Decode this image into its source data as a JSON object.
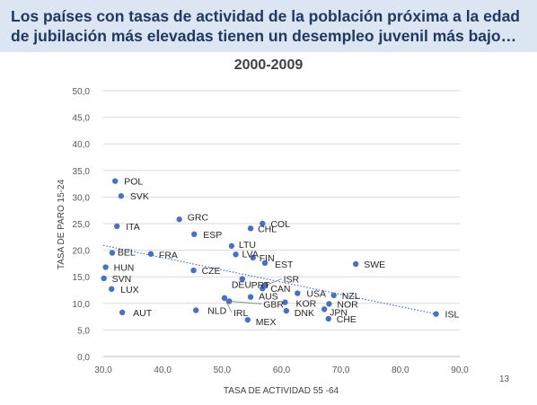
{
  "slide": {
    "headline": "Los países con tasas de actividad de la población próxima a la edad de jubilación más elevadas tienen un desempleo juvenil más bajo…",
    "page_number": "13",
    "colors": {
      "banner_background": "#dce6f2",
      "headline_text": "#1f3864",
      "marker": "#4472c4"
    }
  },
  "chart_data": {
    "type": "scatter",
    "title": "2000-2009",
    "xlabel": "TASA DE ACTIVIDAD 55 -64",
    "ylabel": "TASA DE PARO 15-24",
    "xlim": [
      30,
      90
    ],
    "ylim": [
      0,
      50
    ],
    "x_ticks": [
      "30,0",
      "40,0",
      "50,0",
      "60,0",
      "70,0",
      "80,0",
      "90,0"
    ],
    "y_ticks": [
      "0,0",
      "5,0",
      "10,0",
      "15,0",
      "20,0",
      "25,0",
      "30,0",
      "35,0",
      "40,0",
      "45,0",
      "50,0"
    ],
    "grid": "horizontal",
    "trendline": {
      "style": "dotted",
      "x": [
        30,
        86
      ],
      "y": [
        20.9,
        8.0
      ]
    },
    "points": [
      {
        "label": "POL",
        "x": 32.0,
        "y": 33.0
      },
      {
        "label": "SVK",
        "x": 33.0,
        "y": 30.2
      },
      {
        "label": "ITA",
        "x": 32.3,
        "y": 24.5
      },
      {
        "label": "BEL",
        "x": 31.5,
        "y": 19.5
      },
      {
        "label": "FRA",
        "x": 38.0,
        "y": 19.3
      },
      {
        "label": "HUN",
        "x": 30.4,
        "y": 16.8
      },
      {
        "label": "SVN",
        "x": 30.1,
        "y": 14.7
      },
      {
        "label": "LUX",
        "x": 31.4,
        "y": 12.7
      },
      {
        "label": "AUT",
        "x": 33.2,
        "y": 8.3
      },
      {
        "label": "GRC",
        "x": 42.8,
        "y": 25.8
      },
      {
        "label": "ESP",
        "x": 45.3,
        "y": 23.0
      },
      {
        "label": "CZE",
        "x": 45.2,
        "y": 16.2
      },
      {
        "label": "NLD",
        "x": 45.6,
        "y": 8.7
      },
      {
        "label": "COL",
        "x": 56.8,
        "y": 25.0
      },
      {
        "label": "CHL",
        "x": 54.8,
        "y": 24.1
      },
      {
        "label": "LTU",
        "x": 51.6,
        "y": 20.8
      },
      {
        "label": "LVA",
        "x": 52.3,
        "y": 19.2
      },
      {
        "label": "FIN",
        "x": 55.2,
        "y": 18.6
      },
      {
        "label": "EST",
        "x": 57.2,
        "y": 17.6
      },
      {
        "label": "DEU",
        "x": 53.4,
        "y": 14.6
      },
      {
        "label": "PRT",
        "x": 57.0,
        "y": 13.2
      },
      {
        "label": "ISR",
        "x": 57.3,
        "y": 13.4
      },
      {
        "label": "CAN",
        "x": 56.8,
        "y": 12.8
      },
      {
        "label": "AUS",
        "x": 54.8,
        "y": 11.2
      },
      {
        "label": "IRL",
        "x": 50.4,
        "y": 11.0
      },
      {
        "label": "GBR",
        "x": 51.2,
        "y": 10.4
      },
      {
        "label": "USA",
        "x": 62.7,
        "y": 11.9
      },
      {
        "label": "KOR",
        "x": 60.6,
        "y": 10.2
      },
      {
        "label": "DNK",
        "x": 60.8,
        "y": 8.6
      },
      {
        "label": "MEX",
        "x": 54.3,
        "y": 6.9
      },
      {
        "label": "NZL",
        "x": 68.8,
        "y": 11.5
      },
      {
        "label": "NOR",
        "x": 68.0,
        "y": 9.9
      },
      {
        "label": "JPN",
        "x": 67.2,
        "y": 8.9
      },
      {
        "label": "CHE",
        "x": 67.9,
        "y": 7.1
      },
      {
        "label": "SWE",
        "x": 72.5,
        "y": 17.4
      },
      {
        "label": "ISL",
        "x": 86.0,
        "y": 8.0
      }
    ]
  }
}
